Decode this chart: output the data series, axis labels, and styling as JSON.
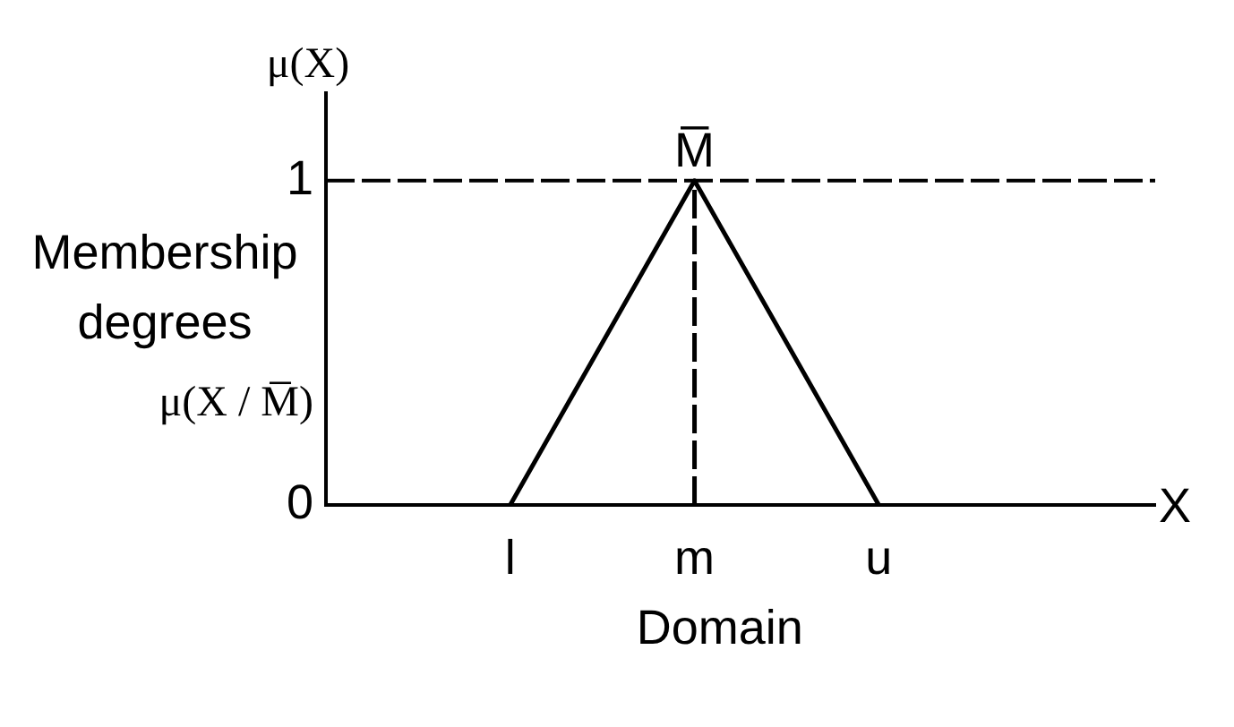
{
  "chart_data": {
    "type": "line",
    "xlabel": "Domain",
    "ylabel": "Membership degrees",
    "categories": [
      null,
      null,
      "l",
      null,
      "m",
      null,
      "u",
      null,
      null,
      null
    ],
    "series": [
      {
        "color": "#000000",
        "x": [
          "l",
          "m",
          "u"
        ],
        "values": [
          0,
          1,
          0
        ]
      },
      {
        "color": "#000000",
        "line_style": "dashed",
        "x": [
          "m",
          "m"
        ],
        "values": [
          0,
          1
        ]
      }
    ],
    "ylim": [
      0,
      1.27
    ],
    "yticks": [
      0,
      {
        "value": 0.31,
        "label": "μ(X / M̅)"
      },
      1
    ],
    "ref_lines": [
      {
        "axis": "y",
        "value": 1,
        "color": "#000000",
        "line_style": "dashed"
      }
    ],
    "annotations": [
      "μ(X)",
      {
        "text": "M̅",
        "x": "m",
        "y": 1
      },
      "X"
    ]
  }
}
